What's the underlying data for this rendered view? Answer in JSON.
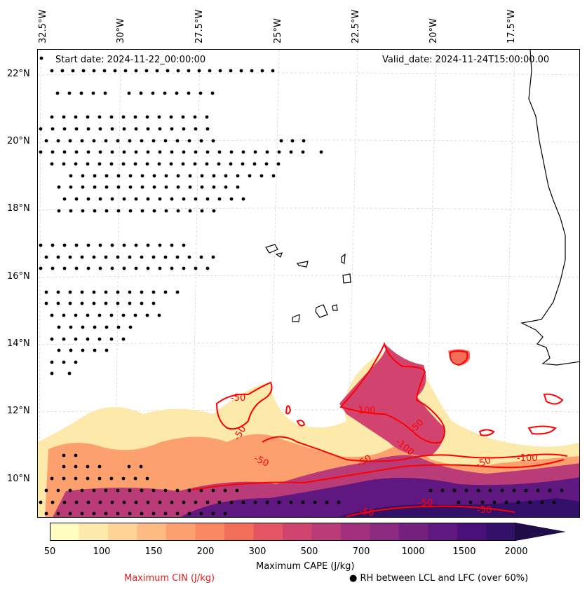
{
  "header": {
    "start_date": "Start date: 2024-11-22_00:00:00",
    "valid_date": "Valid_date: 2024-11-24T15:00:00.00"
  },
  "axes": {
    "lon_labels": [
      "32.5°W",
      "30°W",
      "27.5°W",
      "25°W",
      "22.5°W",
      "20°W",
      "17.5°W"
    ],
    "lat_labels": [
      "22°N",
      "20°N",
      "18°N",
      "16°N",
      "14°N",
      "12°N",
      "10°N"
    ]
  },
  "colorbar": {
    "title": "Maximum CAPE (J/kg)",
    "ticks": [
      "50",
      "100",
      "150",
      "200",
      "300",
      "500",
      "700",
      "1000",
      "1500",
      "2000"
    ],
    "colors": [
      "#fffdbf",
      "#fde9a9",
      "#fed395",
      "#febb81",
      "#fca16e",
      "#f9875f",
      "#f36e59",
      "#e45563",
      "#d14470",
      "#b93b78",
      "#a3307e",
      "#8c2981",
      "#75207f",
      "#5f187f",
      "#4a1079",
      "#33106a",
      "#1f0c48"
    ]
  },
  "contours": {
    "color": "#ff0000",
    "labels": [
      "-50",
      "-50",
      "-50",
      "-100",
      "-50",
      "-100",
      "-50",
      "-50",
      "-100",
      "-50",
      "-50",
      "-50"
    ]
  },
  "legend": {
    "cin_label": "Maximum CIN (J/kg)",
    "cin_color": "#e41a1c",
    "rh_marker": "●",
    "rh_label": "RH between LCL and LFC (over 60%)"
  }
}
